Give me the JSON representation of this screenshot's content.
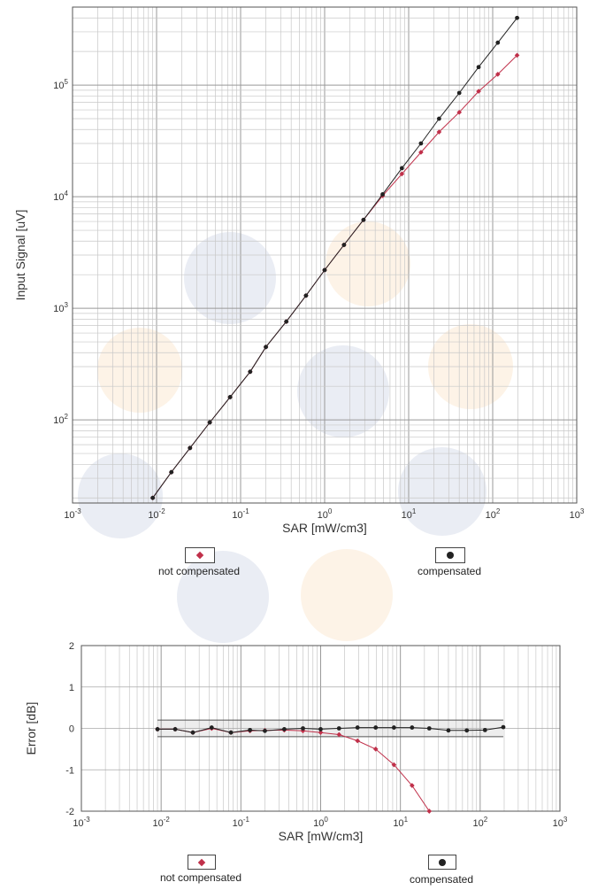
{
  "chart_data": [
    {
      "type": "line",
      "xlabel": "SAR [mW/cm3]",
      "ylabel": "Input Signal [uV]",
      "xscale": "log",
      "yscale": "log",
      "xlim": [
        0.001,
        1000
      ],
      "ylim": [
        18,
        500000
      ],
      "grid": true,
      "x_ticks": [
        "10-3",
        "10-2",
        "10-1",
        "100",
        "101",
        "102",
        "103"
      ],
      "y_ticks": [
        "102",
        "103",
        "104",
        "105"
      ],
      "legend_position": "bottom",
      "series": [
        {
          "name": "not compensated",
          "color": "#c0304a",
          "marker": "diamond",
          "x": [
            0.009,
            0.015,
            0.025,
            0.043,
            0.075,
            0.13,
            0.2,
            0.35,
            0.6,
            1.0,
            1.7,
            2.9,
            4.9,
            8.3,
            14,
            23,
            40,
            68,
            115,
            195
          ],
          "y": [
            20,
            34,
            56,
            95,
            160,
            270,
            450,
            760,
            1300,
            2200,
            3700,
            6200,
            10200,
            16000,
            25000,
            38000,
            57000,
            88000,
            125000,
            185000
          ]
        },
        {
          "name": "compensated",
          "color": "#222222",
          "marker": "circle",
          "x": [
            0.009,
            0.015,
            0.025,
            0.043,
            0.075,
            0.13,
            0.2,
            0.35,
            0.6,
            1.0,
            1.7,
            2.9,
            4.9,
            8.3,
            14,
            23,
            40,
            68,
            115,
            195
          ],
          "y": [
            20,
            34,
            56,
            95,
            160,
            270,
            450,
            760,
            1300,
            2200,
            3700,
            6200,
            10500,
            18000,
            30000,
            50000,
            85000,
            145000,
            240000,
            400000
          ]
        }
      ]
    },
    {
      "type": "line",
      "xlabel": "SAR [mW/cm3]",
      "ylabel": "Error [dB]",
      "xscale": "log",
      "xlim": [
        0.001,
        1000
      ],
      "ylim": [
        -2,
        2
      ],
      "grid": true,
      "x_ticks": [
        "10-3",
        "10-2",
        "10-1",
        "100",
        "101",
        "102",
        "103"
      ],
      "y_ticks": [
        "2",
        "1",
        "0",
        "-1",
        "-2"
      ],
      "tolerance_band": [
        -0.2,
        0.2
      ],
      "legend_position": "bottom",
      "series": [
        {
          "name": "not compensated",
          "color": "#c0304a",
          "marker": "diamond",
          "x": [
            0.009,
            0.015,
            0.025,
            0.043,
            0.075,
            0.13,
            0.2,
            0.35,
            0.6,
            1.0,
            1.7,
            2.9,
            4.9,
            8.3,
            14,
            23
          ],
          "y": [
            -0.02,
            -0.02,
            -0.1,
            0.0,
            -0.1,
            -0.06,
            -0.05,
            -0.04,
            -0.06,
            -0.1,
            -0.15,
            -0.3,
            -0.5,
            -0.88,
            -1.38,
            -2.0
          ]
        },
        {
          "name": "compensated",
          "color": "#222222",
          "marker": "circle",
          "x": [
            0.009,
            0.015,
            0.025,
            0.043,
            0.075,
            0.13,
            0.2,
            0.35,
            0.6,
            1.0,
            1.7,
            2.9,
            4.9,
            8.3,
            14,
            23,
            40,
            68,
            115,
            195
          ],
          "y": [
            -0.02,
            -0.02,
            -0.1,
            0.02,
            -0.1,
            -0.04,
            -0.06,
            -0.02,
            0.0,
            -0.02,
            0.0,
            0.02,
            0.02,
            0.02,
            0.02,
            0.0,
            -0.05,
            -0.05,
            -0.04,
            0.03
          ]
        }
      ]
    }
  ],
  "legends": [
    {
      "not_compensated": "not compensated",
      "compensated": "compensated"
    },
    {
      "not_compensated": "not compensated",
      "compensated": "compensated"
    }
  ],
  "watermark_colors": [
    "#7f8fb8",
    "#f2b36b"
  ]
}
